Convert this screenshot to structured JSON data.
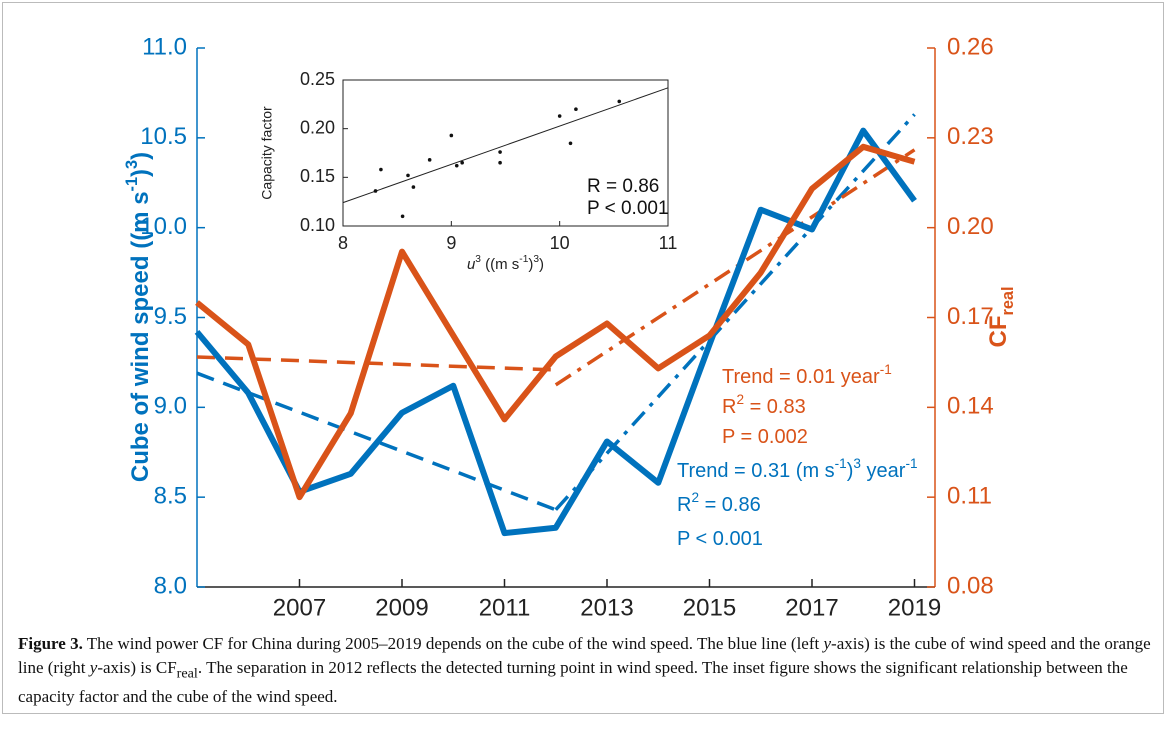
{
  "chart_data": {
    "type": "line",
    "xlim": [
      2005,
      2019.4
    ],
    "xticks": [
      2007,
      2009,
      2011,
      2013,
      2015,
      2017,
      2019
    ],
    "ylim": [
      8,
      11
    ],
    "yticks": [
      {
        "value": 8,
        "label": "8.0"
      },
      8.5,
      {
        "value": 9,
        "label": "9.0"
      },
      9.5,
      {
        "value": 10,
        "label": "10.0"
      },
      10.5,
      {
        "value": 11,
        "label": "11.0"
      }
    ],
    "y2lim": [
      0.08,
      0.26
    ],
    "y2ticks": [
      0.08,
      0.11,
      0.14,
      0.17,
      {
        "value": 0.2,
        "label": "0.20"
      },
      0.23,
      0.26
    ],
    "ylabel": [
      "Cube of wind speed ((m s",
      {
        "sup": "-1"
      },
      ")",
      {
        "sup": "3"
      },
      ")"
    ],
    "y2label": [
      "CF",
      {
        "sub": "real"
      }
    ],
    "ycolor": "#0072BD",
    "y2color": "#D95319",
    "x": [
      2005,
      2006,
      2007,
      2008,
      2009,
      2010,
      2011,
      2012,
      2013,
      2014,
      2015,
      2016,
      2017,
      2018,
      2019
    ],
    "series": [
      {
        "color": "#0072BD",
        "values": [
          9.42,
          9.08,
          8.53,
          8.63,
          8.97,
          9.12,
          8.3,
          8.33,
          8.81,
          8.58,
          9.35,
          10.1,
          9.99,
          10.54,
          10.15
        ]
      },
      {
        "color": "#D95319",
        "axis": "y2",
        "values": [
          0.175,
          0.161,
          0.11,
          0.138,
          0.192,
          0.164,
          0.136,
          0.157,
          0.168,
          0.153,
          0.164,
          0.185,
          0.213,
          0.227,
          0.222
        ]
      }
    ],
    "trends": [
      {
        "color": "#0072BD",
        "style": "dashed",
        "x": [
          2005,
          2012
        ],
        "values": [
          9.19,
          8.43
        ]
      },
      {
        "color": "#0072BD",
        "style": "dashdot",
        "x": [
          2012,
          2019
        ],
        "values": [
          8.43,
          10.63
        ]
      },
      {
        "color": "#D95319",
        "axis": "y2",
        "style": "dashed",
        "x": [
          2005,
          2012
        ],
        "values": [
          0.1568,
          0.1525
        ]
      },
      {
        "color": "#D95319",
        "axis": "y2",
        "style": "dashdot",
        "x": [
          2012,
          2019
        ],
        "values": [
          0.1475,
          0.226
        ]
      }
    ],
    "annotations": [
      {
        "color": "#D95319",
        "lines": [
          [
            "Trend = 0.01 year",
            {
              "sup": "-1"
            }
          ],
          [
            "R",
            {
              "sup": "2"
            },
            " = 0.83"
          ],
          [
            "P = 0.002"
          ]
        ]
      },
      {
        "color": "#0072BD",
        "lines": [
          [
            "Trend = 0.31 (m s",
            {
              "sup": "-1"
            },
            ")",
            {
              "sup": "3"
            },
            " year",
            {
              "sup": "-1"
            }
          ],
          [
            "R",
            {
              "sup": "2"
            },
            " = 0.86"
          ],
          [
            "P < 0.001"
          ]
        ]
      }
    ],
    "inset": {
      "type": "scatter",
      "xlim": [
        8,
        11
      ],
      "xticks": [
        8,
        9,
        10,
        11
      ],
      "ylim": [
        0.1,
        0.25
      ],
      "yticks": [
        {
          "value": 0.1,
          "label": "0.10"
        },
        0.15,
        {
          "value": 0.2,
          "label": "0.20"
        },
        0.25
      ],
      "xlabel": [
        {
          "italic": "u"
        },
        {
          "sup": "3"
        },
        " ((m s",
        {
          "sup": "-1"
        },
        ")",
        {
          "sup": "3"
        },
        ")"
      ],
      "ylabel": "Capacity factor",
      "x": [
        8.3,
        8.35,
        8.55,
        8.6,
        8.65,
        8.8,
        9.0,
        9.05,
        9.1,
        9.45,
        9.45,
        10.0,
        10.1,
        10.15,
        10.55
      ],
      "y": [
        0.136,
        0.158,
        0.11,
        0.152,
        0.14,
        0.168,
        0.193,
        0.162,
        0.165,
        0.176,
        0.165,
        0.213,
        0.185,
        0.22,
        0.228
      ],
      "fit": {
        "x": [
          8,
          11
        ],
        "values": [
          0.124,
          0.242
        ]
      },
      "annotations": [
        "R = 0.86",
        "P < 0.001"
      ]
    }
  },
  "caption": {
    "label": "Figure 3.",
    "text": [
      " The wind power CF for China during 2005–2019 depends on the cube of the wind speed. The blue line (left ",
      {
        "italic": "y"
      },
      "-axis) is the cube of wind speed and the orange line (right ",
      {
        "italic": "y"
      },
      "-axis) is CF",
      {
        "sub": "real"
      },
      ". The separation in 2012 reflects the detected turning point in wind speed. The inset figure shows the significant relationship between the capacity factor and the cube of the wind speed."
    ]
  }
}
